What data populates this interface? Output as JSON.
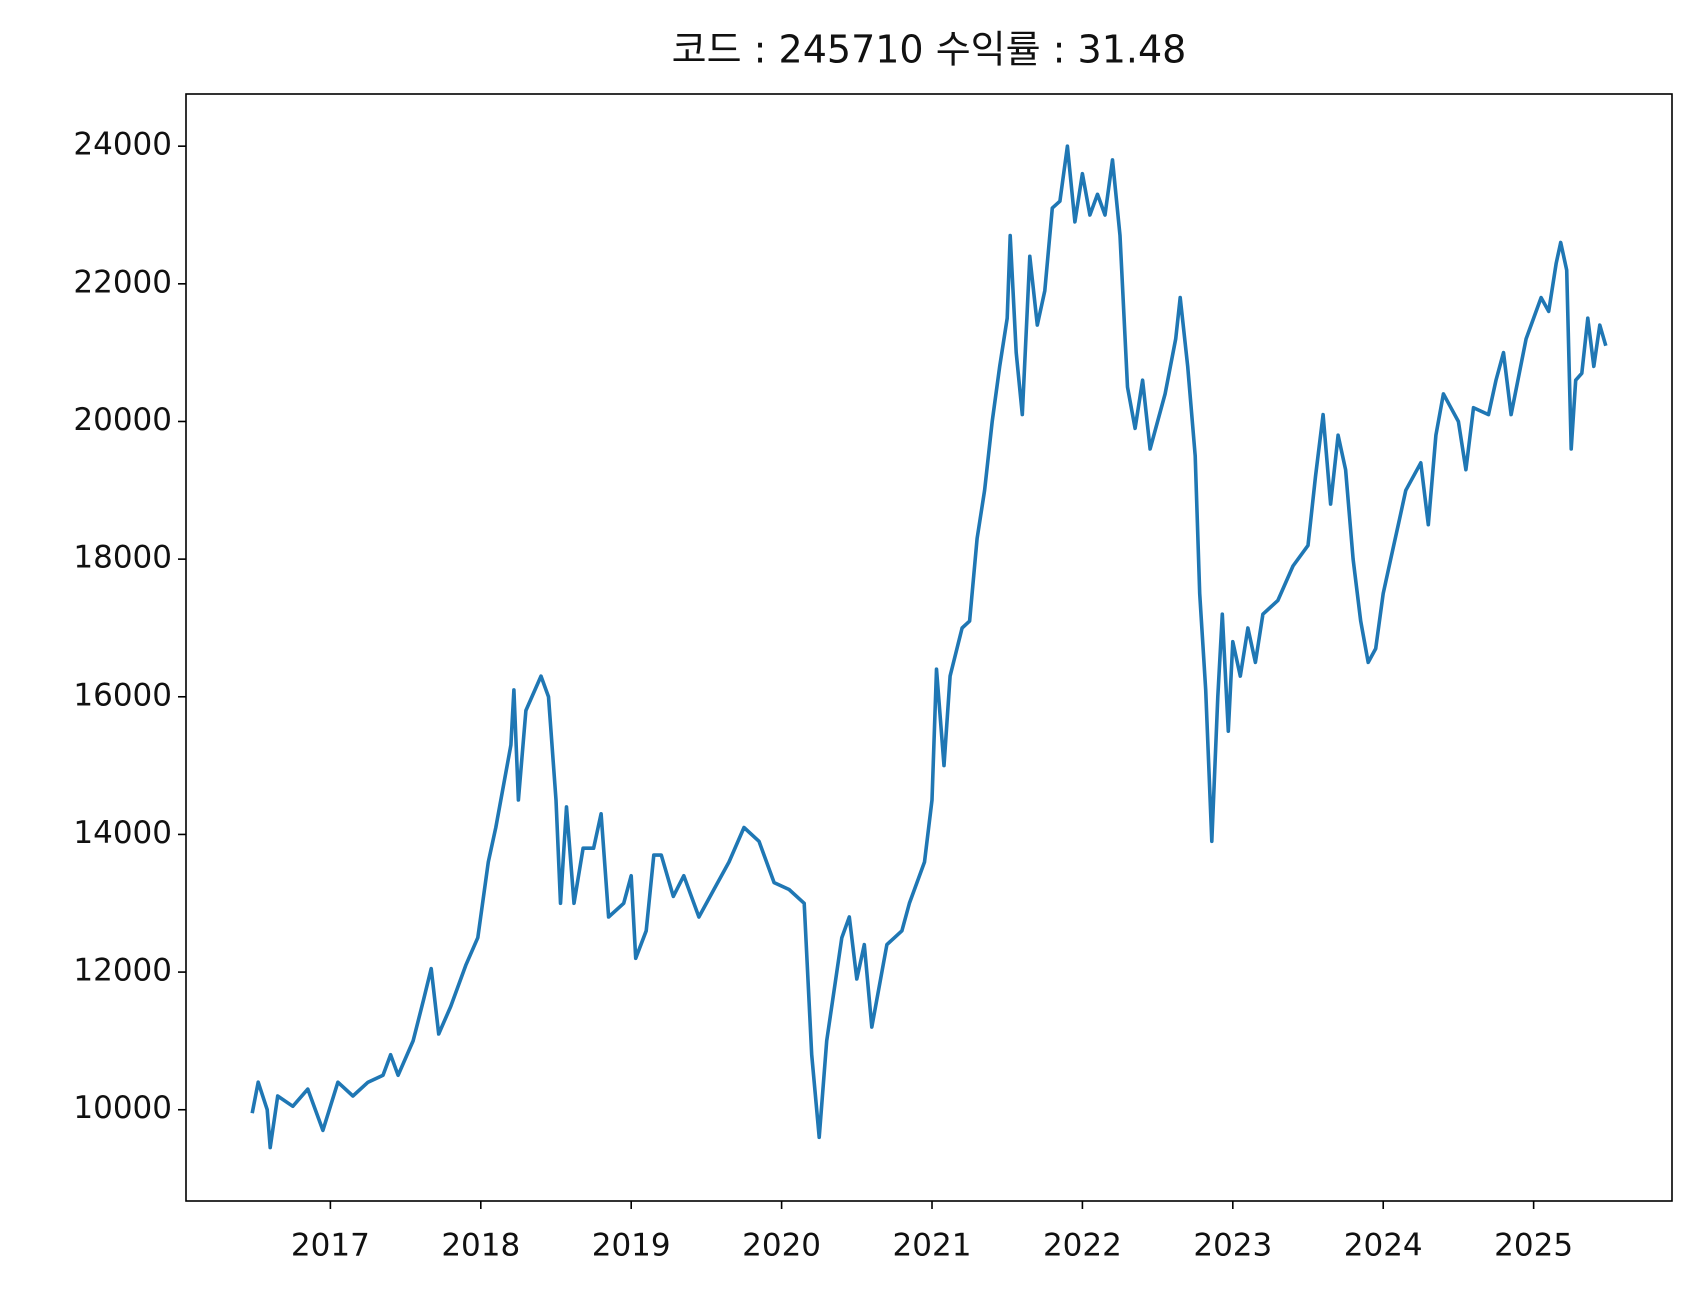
{
  "chart_data": {
    "type": "line",
    "title": "코드 : 245710 수익률 : 31.48",
    "x": [
      2016.48,
      2016.52,
      2016.58,
      2016.6,
      2016.65,
      2016.75,
      2016.85,
      2016.95,
      2017.05,
      2017.15,
      2017.25,
      2017.35,
      2017.4,
      2017.45,
      2017.55,
      2017.62,
      2017.67,
      2017.72,
      2017.8,
      2017.9,
      2017.98,
      2018.05,
      2018.1,
      2018.2,
      2018.22,
      2018.25,
      2018.3,
      2018.4,
      2018.45,
      2018.5,
      2018.53,
      2018.57,
      2018.62,
      2018.68,
      2018.75,
      2018.8,
      2018.85,
      2018.95,
      2019.0,
      2019.03,
      2019.1,
      2019.15,
      2019.2,
      2019.28,
      2019.35,
      2019.45,
      2019.55,
      2019.65,
      2019.75,
      2019.85,
      2019.95,
      2020.05,
      2020.15,
      2020.2,
      2020.25,
      2020.3,
      2020.4,
      2020.45,
      2020.5,
      2020.55,
      2020.6,
      2020.7,
      2020.8,
      2020.85,
      2020.95,
      2021.0,
      2021.03,
      2021.08,
      2021.12,
      2021.2,
      2021.25,
      2021.3,
      2021.35,
      2021.4,
      2021.45,
      2021.5,
      2021.52,
      2021.56,
      2021.6,
      2021.65,
      2021.7,
      2021.75,
      2021.8,
      2021.85,
      2021.9,
      2021.95,
      2022.0,
      2022.05,
      2022.1,
      2022.15,
      2022.2,
      2022.25,
      2022.3,
      2022.35,
      2022.4,
      2022.45,
      2022.55,
      2022.62,
      2022.65,
      2022.7,
      2022.75,
      2022.78,
      2022.82,
      2022.86,
      2022.9,
      2022.93,
      2022.97,
      2023.0,
      2023.05,
      2023.1,
      2023.15,
      2023.2,
      2023.3,
      2023.4,
      2023.5,
      2023.55,
      2023.6,
      2023.65,
      2023.7,
      2023.75,
      2023.8,
      2023.85,
      2023.9,
      2023.95,
      2024.0,
      2024.05,
      2024.1,
      2024.15,
      2024.25,
      2024.3,
      2024.35,
      2024.4,
      2024.45,
      2024.5,
      2024.55,
      2024.6,
      2024.7,
      2024.75,
      2024.8,
      2024.85,
      2024.95,
      2025.0,
      2025.05,
      2025.1,
      2025.15,
      2025.18,
      2025.22,
      2025.25,
      2025.28,
      2025.32,
      2025.36,
      2025.4,
      2025.44,
      2025.48
    ],
    "series": [
      {
        "color": "#1f77b4",
        "values": [
          9950,
          10400,
          10000,
          9450,
          10200,
          10050,
          10300,
          9700,
          10400,
          10200,
          10400,
          10500,
          10800,
          10500,
          11000,
          11600,
          12050,
          11100,
          11500,
          12100,
          12500,
          13600,
          14100,
          15300,
          16100,
          14500,
          15800,
          16300,
          16000,
          14500,
          13000,
          14400,
          13000,
          13800,
          13800,
          14300,
          12800,
          13000,
          13400,
          12200,
          12600,
          13700,
          13700,
          13100,
          13400,
          12800,
          13200,
          13600,
          14100,
          13900,
          13300,
          13200,
          13000,
          10800,
          9600,
          11000,
          12500,
          12800,
          11900,
          12400,
          11200,
          12400,
          12600,
          13000,
          13600,
          14500,
          16400,
          15000,
          16300,
          17000,
          17100,
          18300,
          19000,
          20000,
          20800,
          21500,
          22700,
          21000,
          20100,
          22400,
          21400,
          21900,
          23100,
          23200,
          24000,
          22900,
          23600,
          23000,
          23300,
          23000,
          23800,
          22700,
          20500,
          19900,
          20600,
          19600,
          20400,
          21200,
          21800,
          20800,
          19500,
          17500,
          16100,
          13900,
          16000,
          17200,
          15500,
          16800,
          16300,
          17000,
          16500,
          17200,
          17400,
          17900,
          18200,
          19200,
          20100,
          18800,
          19800,
          19300,
          18000,
          17100,
          16500,
          16700,
          17500,
          18000,
          18500,
          19000,
          19400,
          18500,
          19800,
          20400,
          20200,
          20000,
          19300,
          20200,
          20100,
          20600,
          21000,
          20100,
          21200,
          21500,
          21800,
          21600,
          22300,
          22600,
          22200,
          19600,
          20600,
          20700,
          21500,
          20800,
          21400,
          21100
        ]
      }
    ],
    "xlim": [
      2016.04,
      2025.92
    ],
    "xticks": [
      2017,
      2018,
      2019,
      2020,
      2021,
      2022,
      2023,
      2024,
      2025
    ],
    "ylim": [
      8674,
      24758
    ],
    "yticks": [
      10000,
      12000,
      14000,
      16000,
      18000,
      20000,
      22000,
      24000
    ]
  }
}
